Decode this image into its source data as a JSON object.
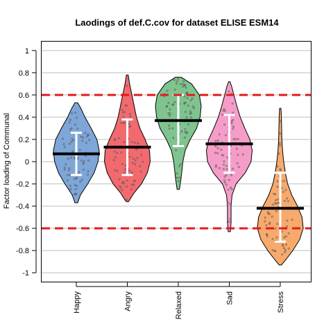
{
  "chart_data": {
    "type": "violin",
    "title": "Laodings of def.C.cov for dataset ELISE ESM14",
    "ylabel": "Factor loading of Communal",
    "xlabel": "",
    "ylim": [
      -1.08,
      1.08
    ],
    "yticks": [
      -1,
      -0.8,
      -0.6,
      -0.4,
      -0.2,
      0,
      0.2,
      0.4,
      0.6,
      0.8,
      1
    ],
    "ytick_labels": [
      "-1",
      "-0.8",
      "-0.6",
      "-0.4",
      "-0.2",
      "0",
      "0.2",
      "0.4",
      "0.6",
      "0.8",
      "1"
    ],
    "grid": true,
    "reference_lines": [
      0.6,
      -0.6
    ],
    "reference_line_color": "#e41a1c",
    "categories": [
      "Happy",
      "Angry",
      "Relaxed",
      "Sad",
      "Stress"
    ],
    "series": [
      {
        "color": "#7ea6d8",
        "min": -0.37,
        "max": 0.53,
        "mean": 0.07,
        "sd_low": -0.12,
        "sd_high": 0.26,
        "density": [
          [
            -0.37,
            0.06
          ],
          [
            -0.3,
            0.18
          ],
          [
            -0.2,
            0.5
          ],
          [
            -0.1,
            0.78
          ],
          [
            0.0,
            0.95
          ],
          [
            0.1,
            1.0
          ],
          [
            0.2,
            0.9
          ],
          [
            0.3,
            0.65
          ],
          [
            0.4,
            0.38
          ],
          [
            0.48,
            0.2
          ],
          [
            0.53,
            0.06
          ]
        ]
      },
      {
        "color": "#f26a6e",
        "min": -0.36,
        "max": 0.78,
        "mean": 0.13,
        "sd_low": -0.12,
        "sd_high": 0.38,
        "density": [
          [
            -0.36,
            0.05
          ],
          [
            -0.28,
            0.3
          ],
          [
            -0.2,
            0.62
          ],
          [
            -0.1,
            0.88
          ],
          [
            0.0,
            1.0
          ],
          [
            0.1,
            0.97
          ],
          [
            0.2,
            0.78
          ],
          [
            0.3,
            0.55
          ],
          [
            0.4,
            0.4
          ],
          [
            0.5,
            0.3
          ],
          [
            0.6,
            0.2
          ],
          [
            0.7,
            0.1
          ],
          [
            0.78,
            0.04
          ]
        ]
      },
      {
        "color": "#7fc48f",
        "min": -0.25,
        "max": 0.76,
        "mean": 0.37,
        "sd_low": 0.14,
        "sd_high": 0.6,
        "density": [
          [
            -0.25,
            0.05
          ],
          [
            -0.15,
            0.12
          ],
          [
            0.0,
            0.2
          ],
          [
            0.1,
            0.3
          ],
          [
            0.2,
            0.52
          ],
          [
            0.3,
            0.8
          ],
          [
            0.4,
            0.95
          ],
          [
            0.5,
            1.0
          ],
          [
            0.6,
            0.92
          ],
          [
            0.7,
            0.58
          ],
          [
            0.76,
            0.12
          ]
        ]
      },
      {
        "color": "#f59dc8",
        "min": -0.63,
        "max": 0.72,
        "mean": 0.16,
        "sd_low": -0.1,
        "sd_high": 0.42,
        "density": [
          [
            -0.63,
            0.05
          ],
          [
            -0.55,
            0.08
          ],
          [
            -0.4,
            0.08
          ],
          [
            -0.3,
            0.12
          ],
          [
            -0.2,
            0.3
          ],
          [
            -0.1,
            0.7
          ],
          [
            0.0,
            0.95
          ],
          [
            0.1,
            1.0
          ],
          [
            0.2,
            0.9
          ],
          [
            0.3,
            0.68
          ],
          [
            0.4,
            0.48
          ],
          [
            0.5,
            0.33
          ],
          [
            0.6,
            0.2
          ],
          [
            0.68,
            0.1
          ],
          [
            0.72,
            0.03
          ]
        ]
      },
      {
        "color": "#f8aa6c",
        "min": -0.93,
        "max": 0.48,
        "mean": -0.42,
        "sd_low": -0.72,
        "sd_high": -0.1,
        "density": [
          [
            -0.93,
            0.05
          ],
          [
            -0.88,
            0.25
          ],
          [
            -0.8,
            0.55
          ],
          [
            -0.7,
            0.85
          ],
          [
            -0.6,
            1.0
          ],
          [
            -0.5,
            0.95
          ],
          [
            -0.4,
            0.75
          ],
          [
            -0.3,
            0.5
          ],
          [
            -0.2,
            0.32
          ],
          [
            -0.1,
            0.22
          ],
          [
            0.0,
            0.15
          ],
          [
            0.1,
            0.1
          ],
          [
            0.2,
            0.07
          ],
          [
            0.3,
            0.06
          ],
          [
            0.4,
            0.05
          ],
          [
            0.48,
            0.03
          ]
        ]
      }
    ]
  }
}
